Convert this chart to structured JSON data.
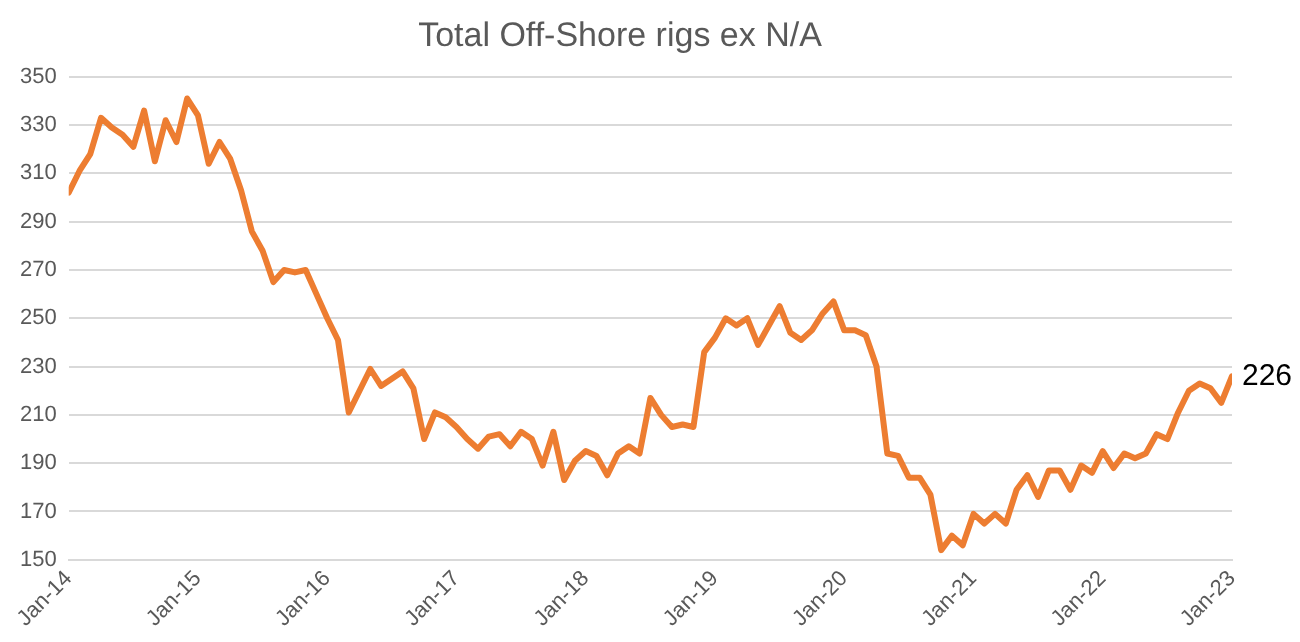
{
  "chart_data": {
    "type": "line",
    "title": "Total Off-Shore rigs ex N/A",
    "x": [
      "2014-01",
      "2014-02",
      "2014-03",
      "2014-04",
      "2014-05",
      "2014-06",
      "2014-07",
      "2014-08",
      "2014-09",
      "2014-10",
      "2014-11",
      "2014-12",
      "2015-01",
      "2015-02",
      "2015-03",
      "2015-04",
      "2015-05",
      "2015-06",
      "2015-07",
      "2015-08",
      "2015-09",
      "2015-10",
      "2015-11",
      "2015-12",
      "2016-01",
      "2016-02",
      "2016-03",
      "2016-04",
      "2016-05",
      "2016-06",
      "2016-07",
      "2016-08",
      "2016-09",
      "2016-10",
      "2016-11",
      "2016-12",
      "2017-01",
      "2017-02",
      "2017-03",
      "2017-04",
      "2017-05",
      "2017-06",
      "2017-07",
      "2017-08",
      "2017-09",
      "2017-10",
      "2017-11",
      "2017-12",
      "2018-01",
      "2018-02",
      "2018-03",
      "2018-04",
      "2018-05",
      "2018-06",
      "2018-07",
      "2018-08",
      "2018-09",
      "2018-10",
      "2018-11",
      "2018-12",
      "2019-01",
      "2019-02",
      "2019-03",
      "2019-04",
      "2019-05",
      "2019-06",
      "2019-07",
      "2019-08",
      "2019-09",
      "2019-10",
      "2019-11",
      "2019-12",
      "2020-01",
      "2020-02",
      "2020-03",
      "2020-04",
      "2020-05",
      "2020-06",
      "2020-07",
      "2020-08",
      "2020-09",
      "2020-10",
      "2020-11",
      "2020-12",
      "2021-01",
      "2021-02",
      "2021-03",
      "2021-04",
      "2021-05",
      "2021-06",
      "2021-07",
      "2021-08",
      "2021-09",
      "2021-10",
      "2021-11",
      "2021-12",
      "2022-01",
      "2022-02",
      "2022-03",
      "2022-04",
      "2022-05",
      "2022-06",
      "2022-07",
      "2022-08",
      "2022-09",
      "2022-10",
      "2022-11",
      "2022-12",
      "2023-01"
    ],
    "series": [
      {
        "color": "#ed7d31",
        "values": [
          302,
          311,
          318,
          333,
          329,
          326,
          321,
          336,
          315,
          332,
          323,
          341,
          334,
          314,
          323,
          316,
          303,
          286,
          278,
          265,
          270,
          269,
          270,
          260,
          250,
          241,
          211,
          220,
          229,
          222,
          225,
          228,
          221,
          200,
          211,
          209,
          205,
          200,
          196,
          201,
          202,
          197,
          203,
          200,
          189,
          203,
          183,
          191,
          195,
          193,
          185,
          194,
          197,
          194,
          217,
          210,
          205,
          206,
          205,
          236,
          242,
          250,
          247,
          250,
          239,
          247,
          255,
          244,
          241,
          245,
          252,
          257,
          245,
          245,
          243,
          230,
          194,
          193,
          184,
          184,
          177,
          154,
          160,
          156,
          169,
          165,
          169,
          165,
          179,
          185,
          176,
          187,
          187,
          179,
          189,
          186,
          195,
          188,
          194,
          192,
          194,
          202,
          200,
          211,
          220,
          223,
          221,
          215,
          226
        ]
      }
    ],
    "xlim": [
      "2014-01",
      "2023-01"
    ],
    "xticks": [
      {
        "value": "2014-01",
        "label": "Jan-14"
      },
      {
        "value": "2015-01",
        "label": "Jan-15"
      },
      {
        "value": "2016-01",
        "label": "Jan-16"
      },
      {
        "value": "2017-01",
        "label": "Jan-17"
      },
      {
        "value": "2018-01",
        "label": "Jan-18"
      },
      {
        "value": "2019-01",
        "label": "Jan-19"
      },
      {
        "value": "2020-01",
        "label": "Jan-20"
      },
      {
        "value": "2021-01",
        "label": "Jan-21"
      },
      {
        "value": "2022-01",
        "label": "Jan-22"
      },
      {
        "value": "2023-01",
        "label": "Jan-23"
      }
    ],
    "ylim": [
      150,
      350
    ],
    "yticks": [
      150,
      170,
      190,
      210,
      230,
      250,
      270,
      290,
      310,
      330,
      350
    ],
    "grid": "y",
    "legend": false,
    "marker": "none",
    "line_style": "solid",
    "annotations": [
      {
        "text": "226",
        "x": "2023-01",
        "y": 226
      }
    ]
  }
}
